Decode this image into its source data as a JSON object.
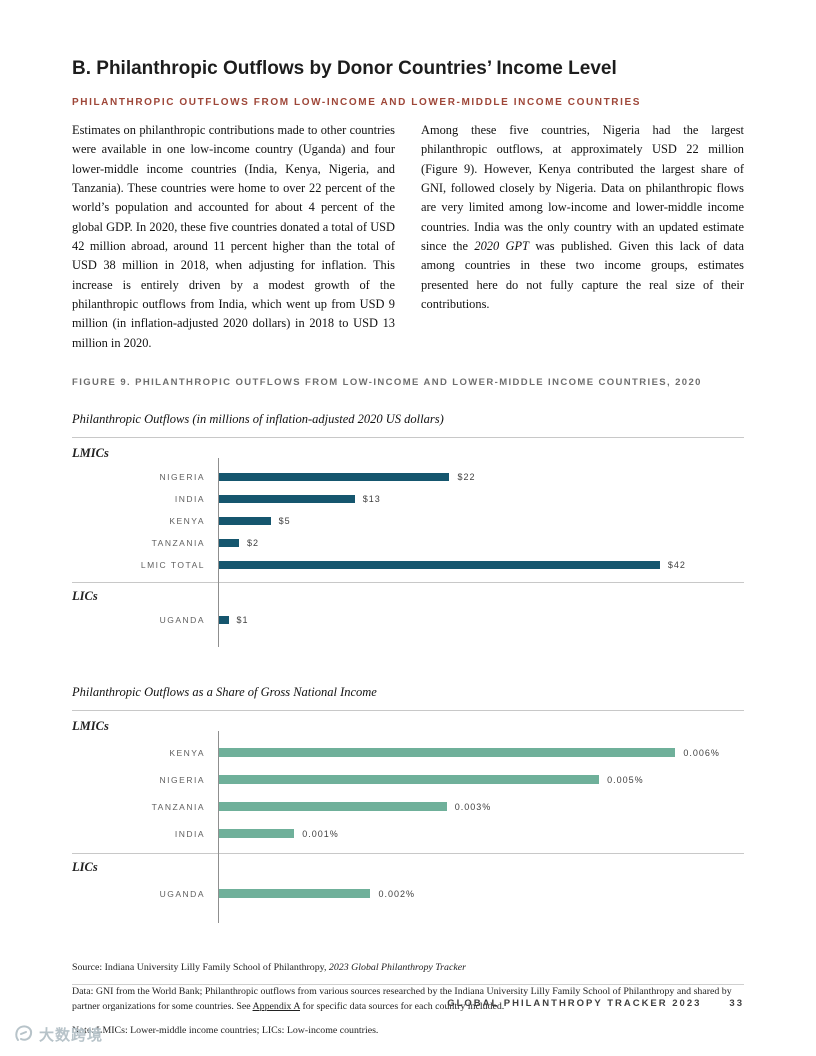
{
  "page": {
    "title": "B. Philanthropic Outflows by Donor Countries’ Income Level",
    "section_heading": "PHILANTHROPIC OUTFLOWS FROM LOW-INCOME AND LOWER-MIDDLE INCOME COUNTRIES",
    "body_col1": "Estimates on philanthropic contributions made to other countries were available in one low-income country (Uganda) and four lower-middle income countries (India, Kenya, Nigeria, and Tanzania). These countries were home to over 22 percent of the world’s population and accounted for about 4 percent of the global GDP. In 2020, these five countries donated a total of USD 42 million abroad, around 11 percent higher than the total of USD 38 million in 2018, when adjusting for inflation. This increase is entirely driven by a modest growth of the philanthropic outflows from India, which went up from USD 9 million (in inflation-adjusted 2020 dollars) in 2018 to USD 13 million in 2020.",
    "body_col2_part1": "Among these five countries, Nigeria had the largest philanthropic outflows, at approximately USD 22 million (Figure 9). However, Kenya contributed the largest share of GNI, followed closely by Nigeria. Data on philanthropic flows are very limited among low-income and lower-middle income countries. India was the only country with an updated estimate since the ",
    "body_col2_italic": "2020 GPT",
    "body_col2_part2": " was published. Given this lack of data among countries in these two income groups, estimates presented here do not fully capture the real size of their contributions."
  },
  "figure": {
    "caption": "FIGURE 9. PHILANTHROPIC OUTFLOWS FROM LOW-INCOME AND LOWER-MIDDLE INCOME COUNTRIES, 2020"
  },
  "chart_data": [
    {
      "type": "bar",
      "title": "Philanthropic Outflows (in millions of inflation-adjusted 2020 US dollars)",
      "orientation": "horizontal",
      "bar_color": "#15566e",
      "xmax": 50,
      "grid": false,
      "groups": [
        {
          "label": "LMICs",
          "bars": [
            {
              "category": "NIGERIA",
              "value": 22,
              "label": "$22"
            },
            {
              "category": "INDIA",
              "value": 13,
              "label": "$13"
            },
            {
              "category": "KENYA",
              "value": 5,
              "label": "$5"
            },
            {
              "category": "TANZANIA",
              "value": 2,
              "label": "$2"
            },
            {
              "category": "LMIC TOTAL",
              "value": 42,
              "label": "$42"
            }
          ]
        },
        {
          "label": "LICs",
          "bars": [
            {
              "category": "UGANDA",
              "value": 1,
              "label": "$1"
            }
          ]
        }
      ]
    },
    {
      "type": "bar",
      "title": "Philanthropic Outflows as a Share of Gross National Income",
      "orientation": "horizontal",
      "bar_color": "#6fb09a",
      "xmax": 0.0069,
      "grid": false,
      "groups": [
        {
          "label": "LMICs",
          "bars": [
            {
              "category": "KENYA",
              "value": 0.006,
              "label": "0.006%"
            },
            {
              "category": "NIGERIA",
              "value": 0.005,
              "label": "0.005%"
            },
            {
              "category": "TANZANIA",
              "value": 0.003,
              "label": "0.003%"
            },
            {
              "category": "INDIA",
              "value": 0.001,
              "label": "0.001%"
            }
          ]
        },
        {
          "label": "LICs",
          "bars": [
            {
              "category": "UGANDA",
              "value": 0.002,
              "label": "0.002%"
            }
          ]
        }
      ]
    }
  ],
  "footnotes": {
    "source_prefix": "Source: Indiana University Lilly Family School of Philanthropy, ",
    "source_italic": "2023 Global Philanthropy Tracker",
    "data_part1": "Data: GNI from the World Bank; Philanthropic outflows from various sources researched by the Indiana University Lilly Family School of Philanthropy and shared by partner organizations for some countries. See ",
    "data_link": "Appendix A",
    "data_part2": " for specific data sources for each country included.",
    "note": "Note: LMICs: Lower-middle income countries; LICs: Low-income countries."
  },
  "footer": {
    "text": "GLOBAL PHILANTHROPY TRACKER 2023",
    "page_number": "33"
  },
  "watermark": {
    "text": "大数跨境"
  }
}
